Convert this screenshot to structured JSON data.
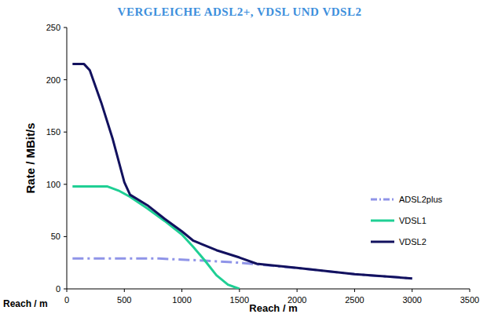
{
  "chart_data": {
    "type": "line",
    "title": "VERGLEICHE ADSL2+, VDSL UND VDSL2",
    "xlabel": "Reach / m",
    "ylabel": "Rate / MBit/s",
    "annotations": [
      "Reach / m"
    ],
    "xlim": [
      0,
      3500
    ],
    "xticks": [
      0,
      500,
      1000,
      1500,
      2000,
      2500,
      3000,
      3500
    ],
    "ylim": [
      0,
      250
    ],
    "yticks": [
      0,
      50,
      100,
      150,
      200,
      250
    ],
    "grid": false,
    "legend": "right",
    "series": [
      {
        "name": "ADSL2plus",
        "color": "#8f94e8",
        "line_style": "dashdot",
        "x": [
          50,
          300,
          800,
          1000,
          1200,
          1500,
          2000,
          2500,
          3000
        ],
        "values": [
          29,
          29,
          29,
          28,
          27,
          25,
          20,
          14,
          10
        ]
      },
      {
        "name": "VDSL1",
        "color": "#1fcf94",
        "line_style": "solid",
        "x": [
          50,
          350,
          450,
          550,
          700,
          850,
          1000,
          1100,
          1200,
          1300,
          1400,
          1500
        ],
        "values": [
          98,
          98,
          94,
          88,
          77,
          65,
          52,
          40,
          27,
          13,
          4,
          0
        ]
      },
      {
        "name": "VDSL2",
        "color": "#12115e",
        "line_style": "solid",
        "x": [
          50,
          150,
          200,
          300,
          400,
          500,
          550,
          700,
          850,
          1000,
          1100,
          1300,
          1500,
          1650,
          2000,
          2500,
          3000
        ],
        "values": [
          215,
          215,
          209,
          178,
          143,
          102,
          90,
          80,
          67,
          55,
          46,
          37,
          30,
          24,
          20,
          14,
          10
        ]
      }
    ]
  }
}
